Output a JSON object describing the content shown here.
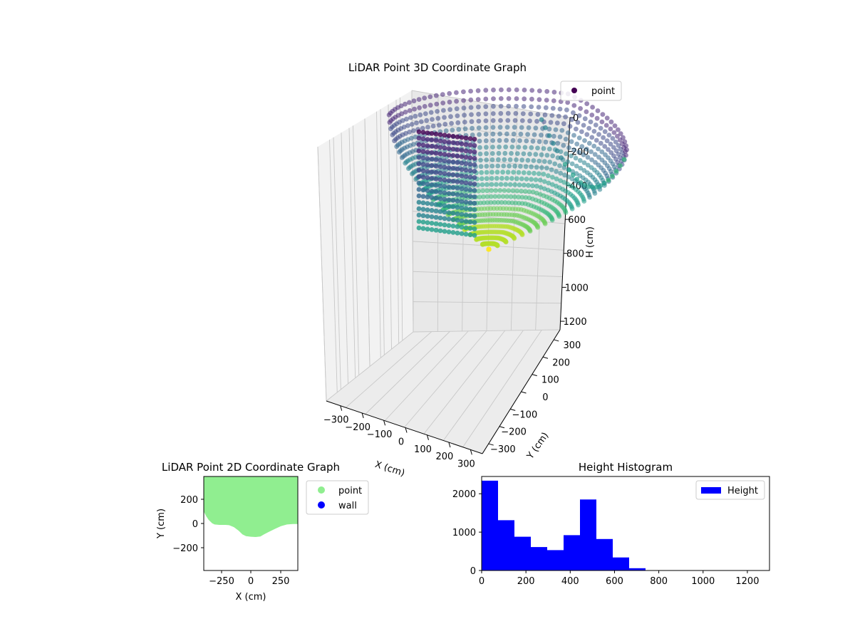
{
  "chart_data": [
    {
      "type": "scatter",
      "projection": "3d",
      "title": "LiDAR Point 3D Coordinate Graph",
      "xlabel": "X (cm)",
      "ylabel": "Y (cm)",
      "zlabel": "H (cm)",
      "xticks": [
        "−300",
        "−200",
        "−100",
        "0",
        "100",
        "200",
        "300"
      ],
      "yticks": [
        "−300",
        "−200",
        "−100",
        "0",
        "100",
        "200",
        "300"
      ],
      "zticks": [
        "0",
        "200",
        "400",
        "600",
        "800",
        "1000",
        "1200"
      ],
      "zlim": [
        0,
        1250
      ],
      "z_inverted": true,
      "colormap": "viridis",
      "legend": [
        "point"
      ],
      "legend_position": "top-right",
      "grid": true
    },
    {
      "type": "scatter",
      "title": "LiDAR Point 2D Coordinate Graph",
      "xlabel": "X (cm)",
      "ylabel": "Y (cm)",
      "xlim": [
        -390,
        390
      ],
      "ylim": [
        -390,
        390
      ],
      "xticks": [
        "−250",
        "0",
        "250"
      ],
      "yticks": [
        "200",
        "0",
        "−200"
      ],
      "series": [
        {
          "name": "point",
          "color": "#90ee90",
          "boundary_top_y": 390,
          "boundary_bottom": [
            [
              -390,
              100
            ],
            [
              -370,
              60
            ],
            [
              -350,
              30
            ],
            [
              -320,
              2
            ],
            [
              -300,
              -8
            ],
            [
              -260,
              -12
            ],
            [
              -210,
              -12
            ],
            [
              -180,
              -14
            ],
            [
              -140,
              -30
            ],
            [
              -100,
              -60
            ],
            [
              -70,
              -90
            ],
            [
              -40,
              -105
            ],
            [
              0,
              -110
            ],
            [
              40,
              -112
            ],
            [
              80,
              -108
            ],
            [
              110,
              -90
            ],
            [
              150,
              -70
            ],
            [
              200,
              -45
            ],
            [
              250,
              -22
            ],
            [
              300,
              -8
            ],
            [
              350,
              -4
            ],
            [
              390,
              -4
            ]
          ]
        },
        {
          "name": "wall",
          "color": "#0000ff",
          "points": []
        }
      ],
      "legend_position": "outside-right",
      "grid": false
    },
    {
      "type": "bar",
      "title": "Height Histogram",
      "xlabel": "",
      "ylabel": "",
      "series": [
        {
          "name": "Height",
          "color": "#0000ff",
          "bin_edges": [
            0,
            74,
            148,
            222,
            296,
            370,
            444,
            518,
            592,
            666,
            740,
            814,
            888,
            962,
            1036,
            1110,
            1184,
            1258
          ],
          "values": [
            2340,
            1310,
            880,
            610,
            530,
            920,
            1850,
            820,
            340,
            60,
            5,
            0,
            0,
            0,
            0,
            0,
            3
          ]
        }
      ],
      "xlim": [
        0,
        1300
      ],
      "ylim": [
        0,
        2450
      ],
      "xticks": [
        0,
        200,
        400,
        600,
        800,
        1000,
        1200
      ],
      "yticks": [
        0,
        1000,
        2000
      ],
      "legend_position": "top-right",
      "grid": false
    }
  ]
}
